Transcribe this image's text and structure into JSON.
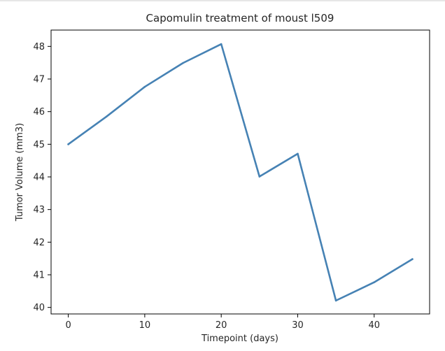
{
  "chart_data": {
    "type": "line",
    "title": "Capomulin treatment of moust l509",
    "xlabel": "Timepoint (days)",
    "ylabel": "Tumor Volume (mm3)",
    "x": [
      0,
      5,
      10,
      15,
      20,
      25,
      30,
      35,
      40,
      45
    ],
    "xlim": [
      -2.25,
      47.25
    ],
    "ylim": [
      39.8,
      48.5
    ],
    "xticks": [
      0,
      10,
      20,
      30,
      40
    ],
    "yticks": [
      40,
      41,
      42,
      43,
      44,
      45,
      46,
      47,
      48
    ],
    "grid": false,
    "series": [
      {
        "values": [
          45.0,
          45.85,
          46.76,
          47.49,
          48.07,
          44.01,
          44.71,
          40.21,
          40.77,
          41.48
        ],
        "color": "#4682b4"
      }
    ]
  }
}
